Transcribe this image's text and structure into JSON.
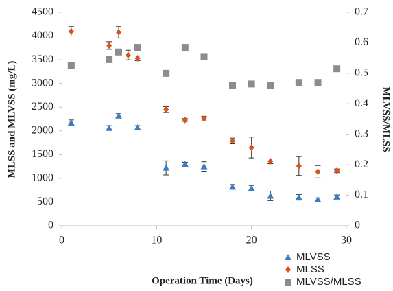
{
  "chart_data": {
    "type": "scatter",
    "xlabel": "Operation Time (Days)",
    "ylabel": "MLSS and MLVSS (mg/L)",
    "y2label": "MLVSS/MLSS",
    "xlim": [
      0,
      30
    ],
    "xticks": [
      0,
      10,
      20,
      30
    ],
    "ylim": [
      0,
      4500
    ],
    "yticks": [
      0,
      500,
      1000,
      1500,
      2000,
      2500,
      3000,
      3500,
      4000,
      4500
    ],
    "y2lim": [
      0,
      0.7
    ],
    "y2ticks": [
      0,
      0.1,
      0.2,
      0.3,
      0.4,
      0.5,
      0.6,
      0.7
    ],
    "series": [
      {
        "name": "MLVSS",
        "color": "#3b7dc4",
        "marker": "triangle",
        "x": [
          1,
          5,
          6,
          8,
          11,
          13,
          15,
          18,
          20,
          22,
          25,
          27,
          29
        ],
        "values": [
          2170,
          2060,
          2320,
          2070,
          1220,
          1300,
          1250,
          820,
          790,
          630,
          600,
          550,
          610
        ],
        "errors": [
          60,
          50,
          50,
          40,
          150,
          40,
          100,
          50,
          60,
          100,
          60,
          40,
          40
        ]
      },
      {
        "name": "MLSS",
        "color": "#d9531e",
        "marker": "diamond",
        "x": [
          1,
          5,
          6,
          7,
          8,
          11,
          13,
          15,
          18,
          20,
          22,
          25,
          27,
          29
        ],
        "values": [
          4100,
          3800,
          4080,
          3600,
          3530,
          2450,
          2230,
          2260,
          1790,
          1650,
          1360,
          1260,
          1140,
          1160
        ],
        "errors": [
          100,
          80,
          120,
          100,
          50,
          60,
          30,
          50,
          60,
          220,
          50,
          200,
          130,
          40
        ]
      },
      {
        "name": "MLVSS/MLSS",
        "color": "#8c8c8c",
        "marker": "square",
        "axis": "y2",
        "x": [
          1,
          5,
          6,
          8,
          11,
          13,
          15,
          18,
          20,
          22,
          25,
          27,
          29
        ],
        "values": [
          0.525,
          0.545,
          0.57,
          0.585,
          0.5,
          0.585,
          0.555,
          0.46,
          0.465,
          0.46,
          0.47,
          0.47,
          0.515
        ]
      }
    ]
  }
}
